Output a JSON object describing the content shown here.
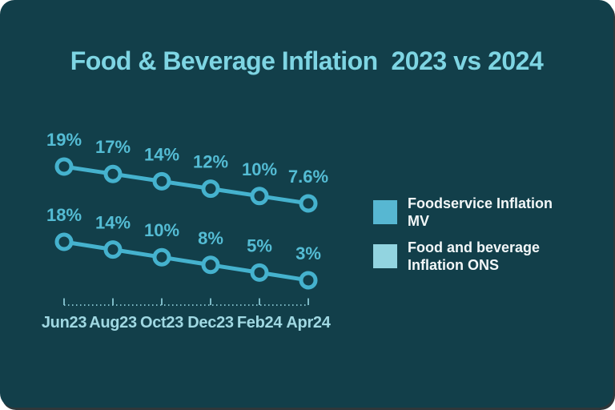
{
  "card": {
    "title": "Food & Beverage Inflation  2023 vs 2024"
  },
  "colors": {
    "page_background": "#FFFFFF",
    "card_background": "#123F4A",
    "title": "#7ED5E3",
    "line": "#45B2CE",
    "point_label": "#54BCD4",
    "axis": "#8FCFDB",
    "month_label": "#A0D8E2",
    "legend_text": "#F2F7F8"
  },
  "chart_data": {
    "type": "line",
    "title": "Food & Beverage Inflation  2023 vs 2024",
    "categories": [
      "Jun23",
      "Aug23",
      "Oct23",
      "Dec23",
      "Feb24",
      "Apr24"
    ],
    "series": [
      {
        "name": "Foodservice Inflation MV",
        "values": [
          19,
          17,
          14,
          12,
          10,
          7.6
        ],
        "point_labels": [
          "19%",
          "17%",
          "14%",
          "12%",
          "10%",
          "7.6%"
        ]
      },
      {
        "name": "Food and beverage Inflation ONS",
        "values": [
          18,
          14,
          10,
          8,
          5,
          3
        ],
        "point_labels": [
          "18%",
          "14%",
          "10%",
          "8%",
          "5%",
          "3%"
        ]
      }
    ],
    "xlabel": "",
    "ylabel": "",
    "grid": false,
    "legend_position": "right",
    "axis_style": "dotted",
    "marker": "open-circle"
  },
  "legend": {
    "items": [
      {
        "label": "Foodservice Inflation MV",
        "color": "#57B7D2"
      },
      {
        "label": "Food and beverage Inflation ONS",
        "color": "#92D4E0"
      }
    ]
  }
}
